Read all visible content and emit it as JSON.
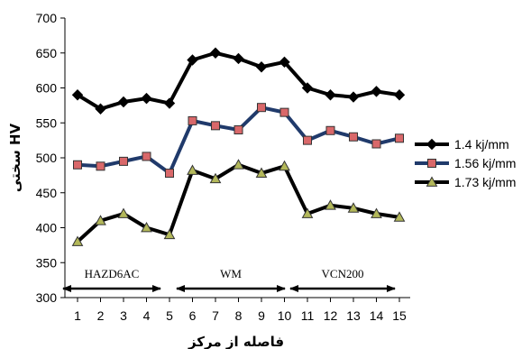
{
  "chart_data": {
    "type": "line",
    "title": "",
    "xlabel": "فاصله از مرکز",
    "ylabel": "سختی HV",
    "x": [
      1,
      2,
      3,
      4,
      5,
      6,
      7,
      8,
      9,
      10,
      11,
      12,
      13,
      14,
      15
    ],
    "ylim": [
      300,
      700
    ],
    "ytick_step": 50,
    "grid": false,
    "legend_placement": "right",
    "series": [
      {
        "name": "1.4 kj/mm",
        "marker": "diamond",
        "color": "#000000",
        "values": [
          590,
          570,
          580,
          585,
          578,
          640,
          650,
          642,
          630,
          637,
          600,
          590,
          587,
          595,
          590
        ]
      },
      {
        "name": "1.56 kj/mm",
        "marker": "square",
        "color": "#203a6b",
        "marker_color": "#d9686a",
        "values": [
          490,
          488,
          495,
          502,
          478,
          553,
          546,
          540,
          572,
          565,
          525,
          539,
          530,
          520,
          528
        ]
      },
      {
        "name": "1.73 kj/mm",
        "marker": "triangle",
        "color": "#000000",
        "marker_color": "#b3b85a",
        "values": [
          380,
          410,
          420,
          400,
          390,
          482,
          470,
          490,
          478,
          488,
          420,
          432,
          428,
          420,
          415
        ]
      }
    ],
    "regions": [
      {
        "label": "HAZD6AC",
        "from_x": 1,
        "to_x": 5
      },
      {
        "label": "WM",
        "from_x": 5,
        "to_x": 10
      },
      {
        "label": "VCN200",
        "from_x": 10,
        "to_x": 15
      }
    ]
  }
}
